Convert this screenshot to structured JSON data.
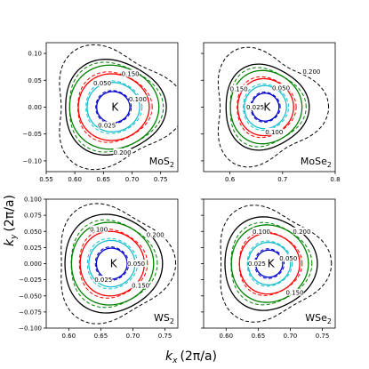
{
  "figure": {
    "xlabel": "k_x (2π/a)",
    "ylabel": "k_y (2π/a)",
    "x_label_main": "k",
    "x_label_sub": "x",
    "y_label_main": "k",
    "y_label_sub": "y",
    "x_label_unit": "(2π/a)",
    "y_label_unit": "(2π/a)"
  },
  "series_styles": [
    {
      "color": "#0000cc",
      "levels": [
        "0.025"
      ]
    },
    {
      "color": "#17becf",
      "levels": [
        "0.050"
      ]
    },
    {
      "color": "#ff0000",
      "levels": [
        "0.100"
      ]
    },
    {
      "color": "#008000",
      "levels": [
        "0.150"
      ]
    },
    {
      "color": "#000000",
      "levels": [
        "0.200"
      ]
    }
  ],
  "chart_data": [
    {
      "type": "contour",
      "panel": "MoS2",
      "label_main": "MoS",
      "label_sub": "2",
      "center_label": "K",
      "center": [
        0.667,
        0.0
      ],
      "xlim": [
        0.55,
        0.78
      ],
      "ylim": [
        -0.12,
        0.12
      ],
      "xticks": [
        "0.55",
        "0.60",
        "0.65",
        "0.70",
        "0.75"
      ],
      "xtick_values": [
        0.55,
        0.6,
        0.65,
        0.7,
        0.75
      ],
      "yticks": [
        "0.10",
        "0.05",
        "0.00",
        "−0.05",
        "−0.10"
      ],
      "ytick_values": [
        0.1,
        0.05,
        0.0,
        -0.05,
        -0.1
      ],
      "show_xticklabels": true,
      "show_yticklabels": true,
      "contours": [
        {
          "level": 0.025,
          "color": "#0000cc",
          "solid_r": 0.029,
          "dashed_r": 0.031,
          "tri": 0.02,
          "label": "0.025",
          "label_pos": [
            0.656,
            -0.034
          ]
        },
        {
          "level": 0.05,
          "color": "#17becf",
          "solid_r": 0.046,
          "dashed_r": 0.049,
          "tri": 0.03,
          "label": "0.050",
          "label_pos": [
            0.648,
            0.045
          ]
        },
        {
          "level": 0.1,
          "color": "#ff0000",
          "solid_r": 0.062,
          "dashed_r": 0.065,
          "tri": 0.05,
          "label": "0.100",
          "label_pos": [
            0.71,
            0.015
          ]
        },
        {
          "level": 0.15,
          "color": "#008000",
          "solid_r": 0.078,
          "dashed_r": 0.082,
          "tri": 0.07,
          "label": "0.150",
          "label_pos": [
            0.697,
            0.062
          ]
        },
        {
          "level": 0.2,
          "color": "#000000",
          "solid_r": 0.088,
          "dashed_r": 0.108,
          "tri": 0.16,
          "label": "0.200",
          "label_pos": [
            0.683,
            -0.084
          ]
        }
      ]
    },
    {
      "type": "contour",
      "panel": "MoSe2",
      "label_main": "MoSe",
      "label_sub": "2",
      "center_label": "K",
      "center": [
        0.667,
        0.0
      ],
      "xlim": [
        0.55,
        0.8
      ],
      "ylim": [
        -0.12,
        0.12
      ],
      "xticks": [
        "0.6",
        "0.7",
        "0.8"
      ],
      "xtick_values": [
        0.6,
        0.7,
        0.8
      ],
      "yticks": [],
      "ytick_values": [
        0.1,
        0.05,
        0.0,
        -0.05,
        -0.1
      ],
      "show_xticklabels": true,
      "show_yticklabels": false,
      "contours": [
        {
          "level": 0.025,
          "color": "#0000cc",
          "solid_r": 0.026,
          "dashed_r": 0.028,
          "tri": 0.02,
          "label": "0.025",
          "label_pos": [
            0.648,
            0.0
          ]
        },
        {
          "level": 0.05,
          "color": "#17becf",
          "solid_r": 0.04,
          "dashed_r": 0.043,
          "tri": 0.03,
          "label": "0.050",
          "label_pos": [
            0.697,
            0.036
          ]
        },
        {
          "level": 0.1,
          "color": "#ff0000",
          "solid_r": 0.053,
          "dashed_r": 0.056,
          "tri": 0.05,
          "label": "0.100",
          "label_pos": [
            0.684,
            -0.046
          ]
        },
        {
          "level": 0.15,
          "color": "#008000",
          "solid_r": 0.068,
          "dashed_r": 0.072,
          "tri": 0.08,
          "label": "0.150",
          "label_pos": [
            0.617,
            0.034
          ]
        },
        {
          "level": 0.2,
          "color": "#000000",
          "solid_r": 0.079,
          "dashed_r": 0.103,
          "tri": 0.17,
          "label": "0.200",
          "label_pos": [
            0.755,
            0.066
          ]
        }
      ]
    },
    {
      "type": "contour",
      "panel": "WS2",
      "label_main": "WS",
      "label_sub": "2",
      "center_label": "K",
      "center": [
        0.667,
        0.0
      ],
      "xlim": [
        0.565,
        0.77
      ],
      "ylim": [
        -0.1,
        0.1
      ],
      "xticks": [
        "0.60",
        "0.65",
        "0.70",
        "0.75"
      ],
      "xtick_values": [
        0.6,
        0.65,
        0.7,
        0.75
      ],
      "yticks": [
        "0.100",
        "0.075",
        "0.050",
        "0.025",
        "0.000",
        "−0.025",
        "−0.050",
        "−0.075",
        "−0.100"
      ],
      "ytick_values": [
        0.1,
        0.075,
        0.05,
        0.025,
        0.0,
        -0.025,
        -0.05,
        -0.075,
        -0.1
      ],
      "show_xticklabels": true,
      "show_yticklabels": true,
      "contours": [
        {
          "level": 0.025,
          "color": "#0000cc",
          "solid_r": 0.024,
          "dashed_r": 0.026,
          "tri": 0.02,
          "label": "0.025",
          "label_pos": [
            0.654,
            -0.025
          ]
        },
        {
          "level": 0.05,
          "color": "#17becf",
          "solid_r": 0.036,
          "dashed_r": 0.039,
          "tri": 0.03,
          "label": "0.050",
          "label_pos": [
            0.705,
            0.0
          ]
        },
        {
          "level": 0.1,
          "color": "#ff0000",
          "solid_r": 0.05,
          "dashed_r": 0.053,
          "tri": 0.05,
          "label": "0.100",
          "label_pos": [
            0.647,
            0.053
          ]
        },
        {
          "level": 0.15,
          "color": "#008000",
          "solid_r": 0.064,
          "dashed_r": 0.067,
          "tri": 0.06,
          "label": "0.150",
          "label_pos": [
            0.712,
            -0.034
          ]
        },
        {
          "level": 0.2,
          "color": "#000000",
          "solid_r": 0.076,
          "dashed_r": 0.089,
          "tri": 0.12,
          "label": "0.200",
          "label_pos": [
            0.735,
            0.045
          ]
        }
      ]
    },
    {
      "type": "contour",
      "panel": "WSe2",
      "label_main": "WSe",
      "label_sub": "2",
      "center_label": "K",
      "center": [
        0.667,
        0.0
      ],
      "xlim": [
        0.565,
        0.77
      ],
      "ylim": [
        -0.1,
        0.1
      ],
      "xticks": [
        "0.60",
        "0.65",
        "0.70",
        "0.75"
      ],
      "xtick_values": [
        0.6,
        0.65,
        0.7,
        0.75
      ],
      "yticks": [],
      "ytick_values": [
        0.1,
        0.075,
        0.05,
        0.025,
        0.0,
        -0.025,
        -0.05,
        -0.075,
        -0.1
      ],
      "show_xticklabels": true,
      "show_yticklabels": false,
      "contours": [
        {
          "level": 0.025,
          "color": "#0000cc",
          "solid_r": 0.021,
          "dashed_r": 0.023,
          "tri": 0.02,
          "label": "0.025",
          "label_pos": [
            0.648,
            0.0
          ]
        },
        {
          "level": 0.05,
          "color": "#17becf",
          "solid_r": 0.033,
          "dashed_r": 0.035,
          "tri": 0.03,
          "label": "0.050",
          "label_pos": [
            0.697,
            0.008
          ]
        },
        {
          "level": 0.1,
          "color": "#ff0000",
          "solid_r": 0.047,
          "dashed_r": 0.049,
          "tri": 0.05,
          "label": "0.100",
          "label_pos": [
            0.655,
            0.05
          ]
        },
        {
          "level": 0.15,
          "color": "#008000",
          "solid_r": 0.06,
          "dashed_r": 0.063,
          "tri": 0.06,
          "label": "0.150",
          "label_pos": [
            0.707,
            -0.045
          ]
        },
        {
          "level": 0.2,
          "color": "#000000",
          "solid_r": 0.072,
          "dashed_r": 0.086,
          "tri": 0.13,
          "label": "0.200",
          "label_pos": [
            0.718,
            0.05
          ]
        }
      ]
    }
  ]
}
